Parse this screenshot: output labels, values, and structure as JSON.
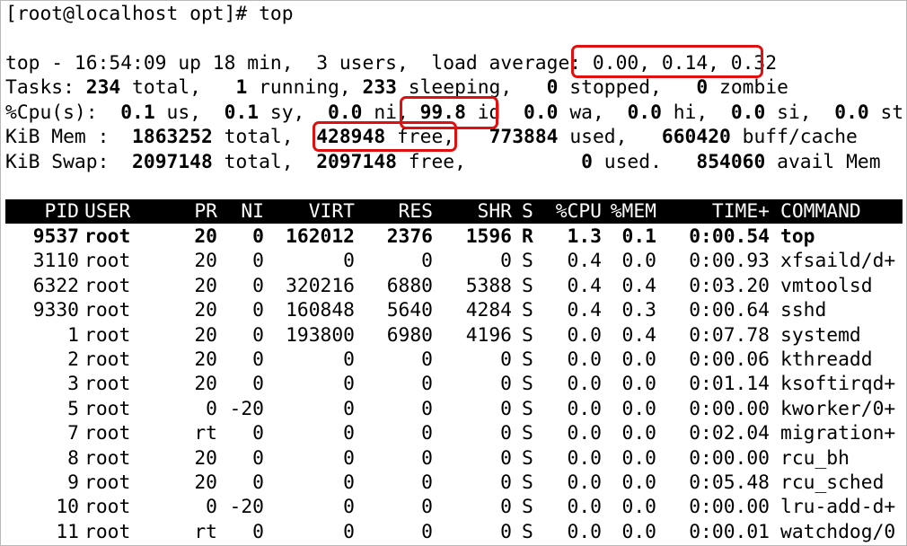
{
  "prompt_line": "[root@localhost opt]# top",
  "summary": {
    "top_line": {
      "prefix": "top - 16:54:09 up 18 min,  3 users,  load average: ",
      "load_avg": "0.00, 0.14, 0.32"
    },
    "tasks": {
      "label": "Tasks: ",
      "total": "234",
      "total_label": " total,   ",
      "running": "1",
      "running_label": " running, ",
      "sleeping": "233",
      "sleeping_label": " sleeping,   ",
      "stopped": "0",
      "stopped_label": " stopped,   ",
      "zombie": "0",
      "zombie_label": " zombie"
    },
    "cpu": {
      "label": "%Cpu(s):  ",
      "us": "0.1",
      "us_label": " us,  ",
      "sy": "0.1",
      "sy_label": " sy,  ",
      "ni": "0.0",
      "ni_label": " ni, ",
      "id": "99.8",
      "id_label": " id",
      "sep": "  ",
      "wa": "0.0",
      "wa_label": " wa,  ",
      "hi": "0.0",
      "hi_label": " hi,  ",
      "si": "0.0",
      "si_label": " si,  ",
      "st": "0.0",
      "st_label": " st"
    },
    "mem": {
      "label": "KiB Mem :  ",
      "total": "1863252",
      "total_label": " total,  ",
      "free": "428948",
      "free_label": " free,",
      "sep": "   ",
      "used": "773884",
      "used_label": " used,   ",
      "buff": "660420",
      "buff_label": " buff/cache"
    },
    "swap": {
      "label": "KiB Swap:  ",
      "total": "2097148",
      "total_label": " total,  ",
      "free": "2097148",
      "free_label": " free,          ",
      "used": "0",
      "used_label": " used.   ",
      "avail": "854060",
      "avail_label": " avail Mem"
    }
  },
  "table": {
    "columns": [
      "PID",
      "USER",
      "PR",
      "NI",
      "VIRT",
      "RES",
      "SHR",
      "S",
      "%CPU",
      "%MEM",
      "TIME+",
      "COMMAND"
    ],
    "rows": [
      [
        "9537",
        "root",
        "20",
        "0",
        "162012",
        "2376",
        "1596",
        "R",
        "1.3",
        "0.1",
        "0:00.54",
        "top"
      ],
      [
        "3110",
        "root",
        "20",
        "0",
        "0",
        "0",
        "0",
        "S",
        "0.4",
        "0.0",
        "0:00.93",
        "xfsaild/d+"
      ],
      [
        "6322",
        "root",
        "20",
        "0",
        "320216",
        "6880",
        "5388",
        "S",
        "0.4",
        "0.4",
        "0:03.20",
        "vmtoolsd"
      ],
      [
        "9330",
        "root",
        "20",
        "0",
        "160848",
        "5640",
        "4284",
        "S",
        "0.4",
        "0.3",
        "0:00.64",
        "sshd"
      ],
      [
        "1",
        "root",
        "20",
        "0",
        "193800",
        "6980",
        "4196",
        "S",
        "0.0",
        "0.4",
        "0:07.78",
        "systemd"
      ],
      [
        "2",
        "root",
        "20",
        "0",
        "0",
        "0",
        "0",
        "S",
        "0.0",
        "0.0",
        "0:00.06",
        "kthreadd"
      ],
      [
        "3",
        "root",
        "20",
        "0",
        "0",
        "0",
        "0",
        "S",
        "0.0",
        "0.0",
        "0:01.14",
        "ksoftirqd+"
      ],
      [
        "5",
        "root",
        "0",
        "-20",
        "0",
        "0",
        "0",
        "S",
        "0.0",
        "0.0",
        "0:00.00",
        "kworker/0+"
      ],
      [
        "7",
        "root",
        "rt",
        "0",
        "0",
        "0",
        "0",
        "S",
        "0.0",
        "0.0",
        "0:02.04",
        "migration+"
      ],
      [
        "8",
        "root",
        "20",
        "0",
        "0",
        "0",
        "0",
        "S",
        "0.0",
        "0.0",
        "0:00.00",
        "rcu_bh"
      ],
      [
        "9",
        "root",
        "20",
        "0",
        "0",
        "0",
        "0",
        "S",
        "0.0",
        "0.0",
        "0:05.48",
        "rcu_sched"
      ],
      [
        "10",
        "root",
        "0",
        "-20",
        "0",
        "0",
        "0",
        "S",
        "0.0",
        "0.0",
        "0:00.00",
        "lru-add-d+"
      ],
      [
        "11",
        "root",
        "rt",
        "0",
        "0",
        "0",
        "0",
        "S",
        "0.0",
        "0.0",
        "0:00.01",
        "watchdog/0"
      ]
    ]
  },
  "colors": {
    "highlight": "#e01010",
    "header_bg": "#000000",
    "header_fg": "#ffffff"
  }
}
